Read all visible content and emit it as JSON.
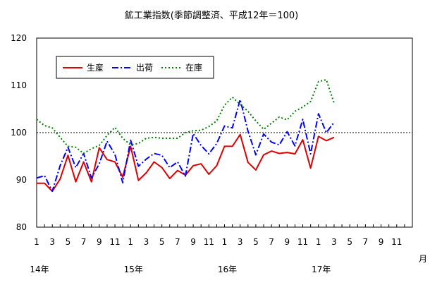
{
  "chart_data": {
    "type": "line",
    "title": "鉱工業指数(季節調整済、平成12年＝100)",
    "xlabel": "月",
    "ylabel": "",
    "ylim": [
      80,
      120
    ],
    "y_ticks": [
      "80",
      "90",
      "100",
      "110",
      "120"
    ],
    "reference_line": 100,
    "x_ticks": [
      "1",
      "3",
      "5",
      "7",
      "9",
      "11",
      "1",
      "3",
      "5",
      "7",
      "9",
      "11",
      "1",
      "3",
      "5",
      "7",
      "9",
      "11",
      "1",
      "3",
      "5",
      "7",
      "9",
      "11"
    ],
    "year_labels": [
      {
        "text": "14年",
        "at_index": 0
      },
      {
        "text": "15年",
        "at_index": 12
      },
      {
        "text": "16年",
        "at_index": 24
      },
      {
        "text": "17年",
        "at_index": 36
      }
    ],
    "n_slots": 48,
    "legend_position": "top-left",
    "series": [
      {
        "name": "生産",
        "color": "#e00000",
        "style": "solid",
        "values": [
          89.3,
          89.3,
          87.6,
          90.2,
          95.2,
          89.6,
          93.8,
          89.6,
          96.8,
          94.3,
          93.8,
          90.6,
          97.1,
          89.9,
          91.5,
          93.8,
          92.6,
          90.3,
          92.0,
          91.0,
          93.0,
          93.4,
          91.2,
          93.0,
          97.1,
          97.1,
          99.6,
          93.7,
          92.1,
          95.3,
          96.1,
          95.6,
          95.8,
          95.5,
          98.5,
          92.5,
          99.2,
          98.3,
          99.0
        ]
      },
      {
        "name": "出荷",
        "color": "#0000ff",
        "style": "dashdot",
        "values": [
          90.4,
          90.9,
          87.6,
          93.0,
          96.9,
          92.6,
          95.6,
          90.4,
          93.4,
          98.2,
          95.4,
          89.4,
          98.4,
          92.9,
          94.4,
          95.6,
          95.2,
          92.6,
          93.8,
          90.8,
          99.8,
          97.3,
          95.5,
          97.7,
          101.4,
          101.0,
          107.0,
          100.3,
          95.3,
          99.7,
          98.0,
          97.4,
          100.2,
          97.2,
          102.8,
          95.5,
          104.0,
          100.0,
          102.2
        ]
      },
      {
        "name": "在庫",
        "color": "#008000",
        "style": "dotted",
        "values": [
          102.8,
          101.5,
          101.0,
          99.0,
          97.1,
          96.9,
          95.6,
          96.6,
          97.3,
          99.4,
          101.1,
          98.8,
          97.4,
          97.7,
          98.8,
          99.0,
          98.8,
          98.8,
          98.8,
          100.0,
          100.4,
          100.5,
          101.3,
          102.5,
          105.8,
          107.5,
          106.0,
          104.5,
          102.5,
          100.7,
          102.0,
          103.3,
          102.7,
          104.5,
          105.4,
          106.6,
          110.8,
          111.2,
          106.2
        ]
      }
    ]
  }
}
